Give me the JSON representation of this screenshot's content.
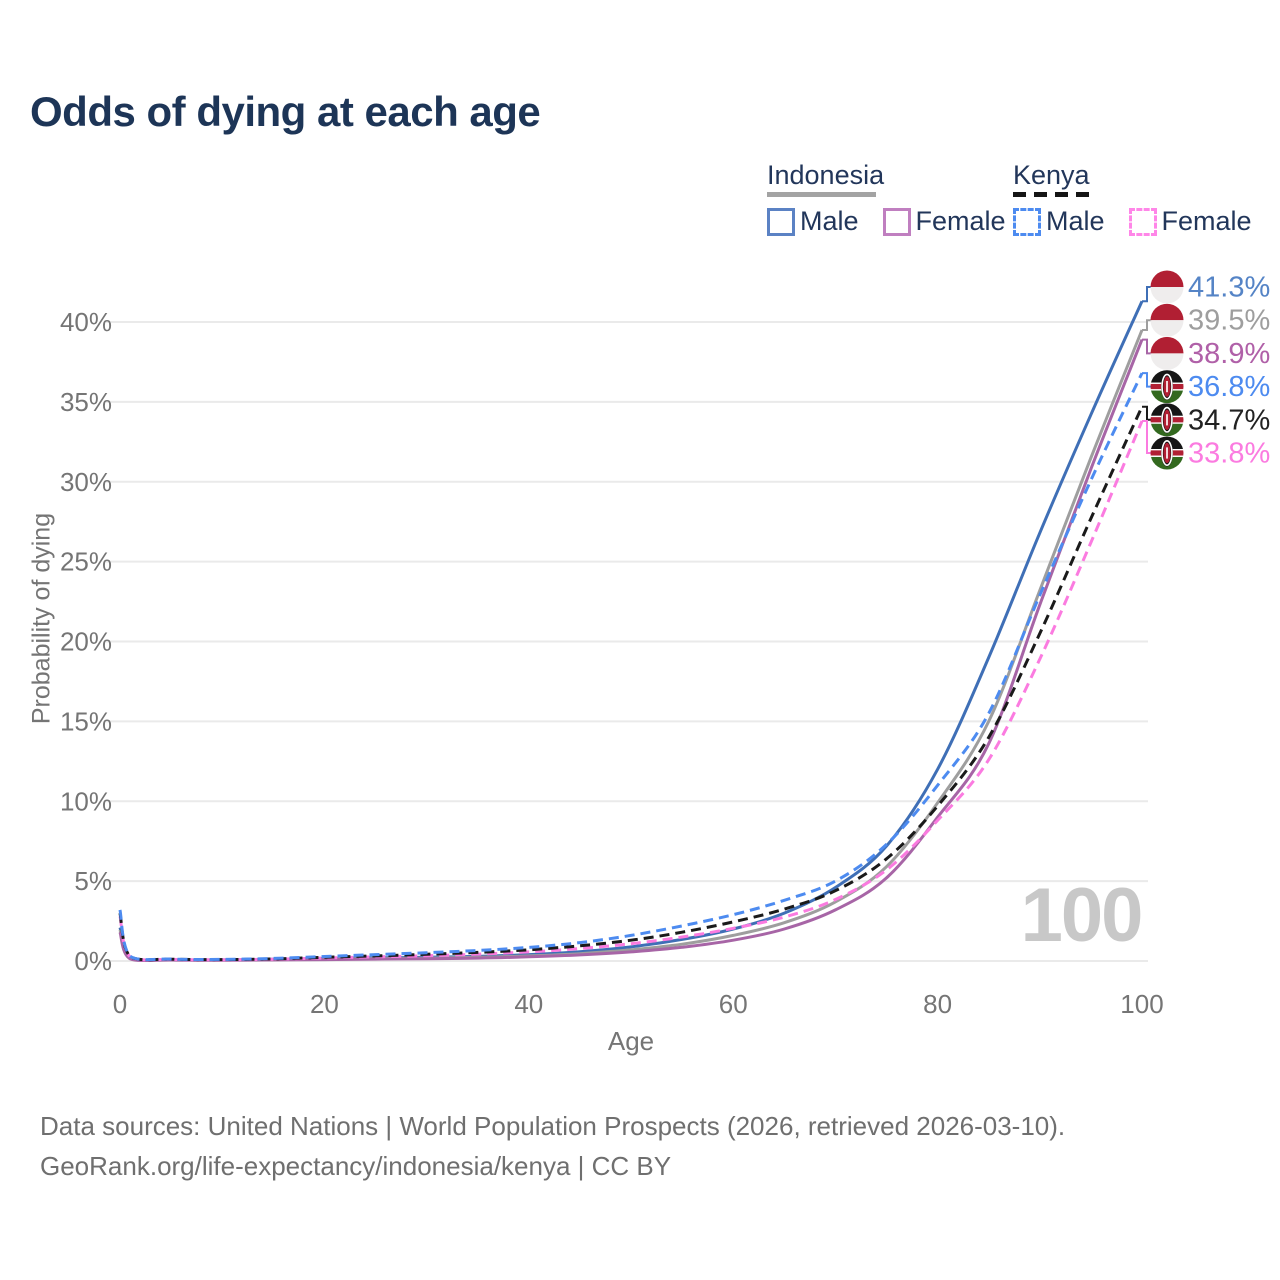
{
  "header": {
    "title": "Odds of dying at each age"
  },
  "legend": {
    "indonesia": {
      "label": "Indonesia",
      "male_label": "Male",
      "female_label": "Female"
    },
    "kenya": {
      "label": "Kenya",
      "male_label": "Male",
      "female_label": "Female"
    }
  },
  "watermark": {
    "value": "100"
  },
  "footer": {
    "line1": "Data sources: United Nations | World Population Prospects (2026, retrieved 2026-03-10).",
    "line2": "GeoRank.org/life-expectancy/indonesia/kenya | CC BY"
  },
  "chart_data": {
    "type": "line",
    "title": "Odds of dying at each age",
    "xlabel": "Age",
    "ylabel": "Probability of dying",
    "xlim": [
      0,
      100
    ],
    "ylim": [
      0,
      43
    ],
    "x_ticks": [
      0,
      20,
      40,
      60,
      80,
      100
    ],
    "y_ticks_pct": [
      0,
      5,
      10,
      15,
      20,
      25,
      30,
      35,
      40
    ],
    "grid": "horizontal",
    "legend_position": "top-right",
    "x": [
      0,
      1,
      5,
      10,
      15,
      20,
      25,
      30,
      35,
      40,
      45,
      50,
      55,
      60,
      65,
      70,
      75,
      80,
      85,
      90,
      95,
      100
    ],
    "series": [
      {
        "name": "Indonesia Male",
        "country": "indonesia",
        "sex": "male",
        "style": "solid",
        "color": "#3f6fb6",
        "end_label": "41.3%",
        "end_label_color": "#5584c6",
        "values": [
          2.1,
          0.16,
          0.08,
          0.07,
          0.11,
          0.16,
          0.2,
          0.23,
          0.29,
          0.4,
          0.58,
          0.88,
          1.35,
          2.0,
          3.0,
          4.6,
          7.2,
          12.0,
          19.0,
          26.8,
          34.2,
          41.3
        ]
      },
      {
        "name": "Indonesia Both Sexes",
        "country": "indonesia",
        "sex": "both",
        "style": "solid",
        "color": "#9e9e9e",
        "end_label": "39.5%",
        "end_label_color": "#9e9e9e",
        "values": [
          1.95,
          0.15,
          0.07,
          0.06,
          0.09,
          0.12,
          0.15,
          0.18,
          0.23,
          0.32,
          0.46,
          0.7,
          1.05,
          1.6,
          2.4,
          3.7,
          5.9,
          9.9,
          15.0,
          23.2,
          31.5,
          39.5
        ]
      },
      {
        "name": "Indonesia Female",
        "country": "indonesia",
        "sex": "female",
        "style": "solid",
        "color": "#a765a6",
        "end_label": "38.9%",
        "end_label_color": "#b060a8",
        "values": [
          1.8,
          0.14,
          0.06,
          0.05,
          0.07,
          0.09,
          0.12,
          0.14,
          0.18,
          0.26,
          0.38,
          0.57,
          0.86,
          1.3,
          2.0,
          3.2,
          5.2,
          9.0,
          13.6,
          22.3,
          30.8,
          38.9
        ]
      },
      {
        "name": "Kenya Female",
        "country": "kenya",
        "sex": "female",
        "style": "dashed",
        "color": "#fb7be0",
        "end_label": "33.8%",
        "end_label_color": "#fb7be0",
        "values": [
          2.8,
          0.26,
          0.1,
          0.08,
          0.11,
          0.19,
          0.26,
          0.33,
          0.43,
          0.57,
          0.78,
          1.08,
          1.5,
          2.05,
          2.75,
          3.85,
          5.7,
          8.8,
          12.6,
          18.9,
          26.2,
          33.8
        ]
      },
      {
        "name": "Kenya Both Sexes",
        "country": "kenya",
        "sex": "both",
        "style": "dashed",
        "color": "#1a1a1a",
        "end_label": "34.7%",
        "end_label_color": "#222222",
        "values": [
          3.0,
          0.28,
          0.11,
          0.09,
          0.13,
          0.23,
          0.32,
          0.42,
          0.54,
          0.7,
          0.95,
          1.3,
          1.8,
          2.45,
          3.25,
          4.4,
          6.4,
          9.7,
          14.0,
          20.5,
          27.7,
          34.7
        ]
      },
      {
        "name": "Kenya Male",
        "country": "kenya",
        "sex": "male",
        "style": "dashed",
        "color": "#4d8bf0",
        "end_label": "36.8%",
        "end_label_color": "#4d8bf0",
        "values": [
          3.2,
          0.3,
          0.12,
          0.1,
          0.16,
          0.28,
          0.4,
          0.52,
          0.66,
          0.85,
          1.15,
          1.6,
          2.2,
          2.9,
          3.8,
          5.0,
          7.3,
          11.0,
          15.5,
          22.9,
          30.1,
          36.8
        ]
      }
    ],
    "end_labels_order": [
      "41.3%",
      "39.5%",
      "38.9%",
      "36.8%",
      "34.7%",
      "33.8%"
    ]
  }
}
